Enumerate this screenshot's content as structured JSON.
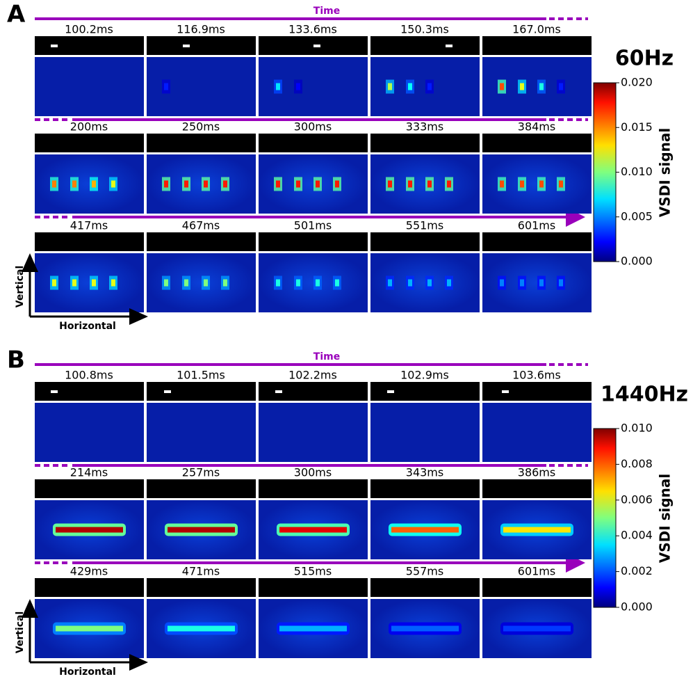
{
  "panels": [
    {
      "label": "A",
      "time_label": "Time",
      "frequency": "60Hz",
      "rows": [
        [
          "100.2ms",
          "116.9ms",
          "133.6ms",
          "150.3ms",
          "167.0ms"
        ],
        [
          "200ms",
          "250ms",
          "300ms",
          "333ms",
          "384ms"
        ],
        [
          "417ms",
          "467ms",
          "501ms",
          "551ms",
          "601ms"
        ]
      ],
      "colorbar": {
        "label": "VSDI signal",
        "ticks": [
          {
            "value": 0,
            "label": "0.000"
          },
          {
            "value": 0.005,
            "label": "0.005"
          },
          {
            "value": 0.01,
            "label": "0.010"
          },
          {
            "value": 0.015,
            "label": "0.015"
          },
          {
            "value": 0.02,
            "label": "0.020"
          }
        ],
        "lim": [
          0,
          0.02
        ]
      },
      "vertical_label": "Vertical",
      "horizontal_label": "Horizontal"
    },
    {
      "label": "B",
      "time_label": "Time",
      "frequency": "1440Hz",
      "rows": [
        [
          "100.8ms",
          "101.5ms",
          "102.2ms",
          "102.9ms",
          "103.6ms"
        ],
        [
          "214ms",
          "257ms",
          "300ms",
          "343ms",
          "386ms"
        ],
        [
          "429ms",
          "471ms",
          "515ms",
          "557ms",
          "601ms"
        ]
      ],
      "colorbar": {
        "label": "VSDI signal",
        "ticks": [
          {
            "value": 0,
            "label": "0.000"
          },
          {
            "value": 0.002,
            "label": "0.002"
          },
          {
            "value": 0.004,
            "label": "0.004"
          },
          {
            "value": 0.006,
            "label": "0.006"
          },
          {
            "value": 0.008,
            "label": "0.008"
          },
          {
            "value": 0.01,
            "label": "0.010"
          }
        ],
        "lim": [
          0,
          0.01
        ]
      },
      "vertical_label": "Vertical",
      "horizontal_label": "Horizontal"
    }
  ]
}
